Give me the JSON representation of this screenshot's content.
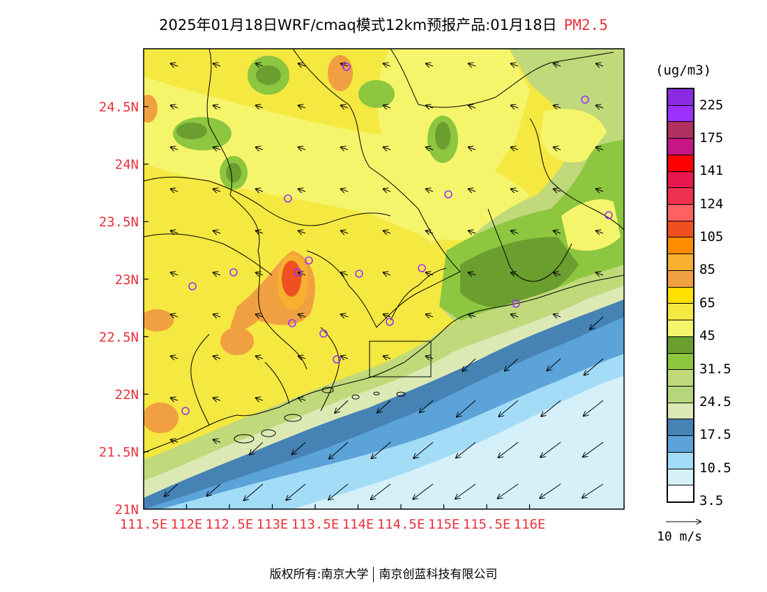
{
  "title": {
    "main": "2025年01月18日WRF/cmaq模式12km预报产品:01月18日",
    "pollutant": "PM2.5"
  },
  "copyright": {
    "owner": "版权所有:南京大学",
    "company": "南京创蓝科技有限公司"
  },
  "axes": {
    "x_labels": [
      "111.5E",
      "112E",
      "112.5E",
      "113E",
      "113.5E",
      "114E",
      "114.5E",
      "115E",
      "115.5E",
      "116E"
    ],
    "y_labels": [
      "24.5N",
      "24N",
      "23.5N",
      "23N",
      "22.5N",
      "22N",
      "21.5N",
      "21N"
    ],
    "label_color": "#e8323a"
  },
  "legend": {
    "unit": "(ug/m3)",
    "swatches": [
      "#8a2be2",
      "#9b30ff",
      "#b03060",
      "#c71585",
      "#ff0000",
      "#e8174d",
      "#f0304f",
      "#ff6060",
      "#f05020",
      "#ff8c00",
      "#f8b030",
      "#f0a040",
      "#ffe000",
      "#f5e840",
      "#f5f56c",
      "#6a9e2e",
      "#8dc63f",
      "#c0d97a",
      "#b5d67d",
      "#dce9b5",
      "#4682b4",
      "#5ba3d9",
      "#a3dcf7",
      "#d6f0fa",
      "#ffffff"
    ],
    "labels": [
      "225",
      "175",
      "141",
      "124",
      "105",
      "85",
      "65",
      "45",
      "31.5",
      "24.5",
      "17.5",
      "10.5",
      "3.5"
    ],
    "wind_ref": "10 m/s"
  },
  "map_colors": {
    "sea_far": "#d6f0fa",
    "sea_mid": "#a3dcf7",
    "sea_near": "#5ba3d9",
    "sea_shore": "#4682b4",
    "coast_band": "#dce9b5",
    "green_light": "#c0d97a",
    "green_mid": "#8dc63f",
    "green_dark": "#6a9e2e",
    "yellow_pale": "#f5f56c",
    "yellow": "#f5e840",
    "yellow_deep": "#ffe000",
    "orange_light": "#f0a040",
    "orange": "#f8b030",
    "red_orange": "#f05020",
    "marker": "#9b30ff"
  }
}
